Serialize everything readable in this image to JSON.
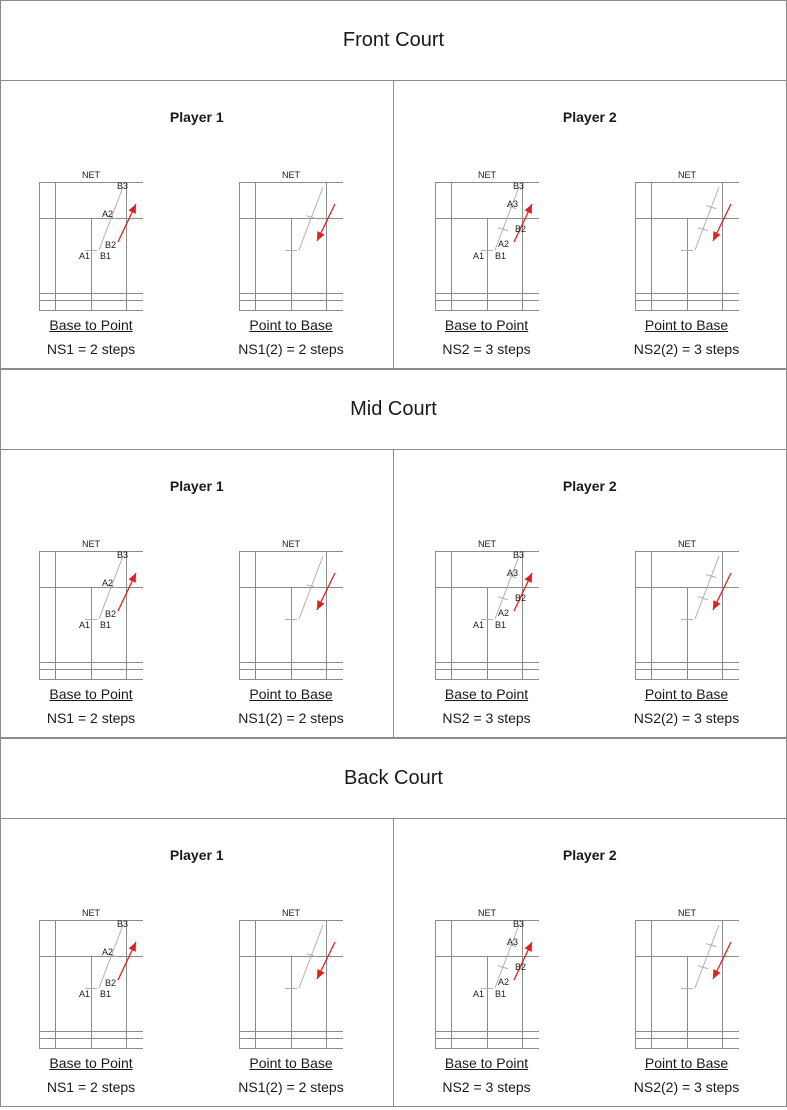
{
  "sections": [
    {
      "title": "Front Court",
      "players": [
        {
          "name": "Player 1",
          "steps_type": "ns1",
          "diagrams": [
            {
              "kind": "base",
              "net": "NET",
              "label": "Base to Point",
              "steps": "NS1 = 2 steps",
              "marks": [
                "B3",
                "A2",
                "B2",
                "A1",
                "B1"
              ]
            },
            {
              "kind": "point",
              "net": "NET",
              "label": "Point to Base",
              "steps": "NS1(2) = 2 steps",
              "marks": []
            }
          ]
        },
        {
          "name": "Player 2",
          "steps_type": "ns2",
          "diagrams": [
            {
              "kind": "base",
              "net": "NET",
              "label": "Base to Point",
              "steps": "NS2 = 3 steps",
              "marks": [
                "B3",
                "A3",
                "B2",
                "A2",
                "A1",
                "B1"
              ]
            },
            {
              "kind": "point",
              "net": "NET",
              "label": "Point to Base",
              "steps": "NS2(2) = 3 steps",
              "marks": []
            }
          ]
        }
      ]
    },
    {
      "title": "Mid Court",
      "players": [
        {
          "name": "Player 1",
          "steps_type": "ns1",
          "diagrams": [
            {
              "kind": "base",
              "net": "NET",
              "label": "Base to Point",
              "steps": "NS1 = 2 steps",
              "marks": [
                "B3",
                "A2",
                "B2",
                "A1",
                "B1"
              ]
            },
            {
              "kind": "point",
              "net": "NET",
              "label": "Point to Base",
              "steps": "NS1(2) = 2 steps",
              "marks": []
            }
          ]
        },
        {
          "name": "Player 2",
          "steps_type": "ns2",
          "diagrams": [
            {
              "kind": "base",
              "net": "NET",
              "label": "Base to Point",
              "steps": "NS2 = 3 steps",
              "marks": [
                "B3",
                "A3",
                "B2",
                "A2",
                "A1",
                "B1"
              ]
            },
            {
              "kind": "point",
              "net": "NET",
              "label": "Point to Base",
              "steps": "NS2(2) = 3 steps",
              "marks": []
            }
          ]
        }
      ]
    },
    {
      "title": "Back Court",
      "players": [
        {
          "name": "Player 1",
          "steps_type": "ns1",
          "diagrams": [
            {
              "kind": "base",
              "net": "NET",
              "label": "Base to Point",
              "steps": "NS1 = 2 steps",
              "marks": [
                "B3",
                "A2",
                "B2",
                "A1",
                "B1"
              ]
            },
            {
              "kind": "point",
              "net": "NET",
              "label": "Point to Base",
              "steps": "NS1(2) = 2 steps",
              "marks": []
            }
          ]
        },
        {
          "name": "Player 2",
          "steps_type": "ns2",
          "diagrams": [
            {
              "kind": "base",
              "net": "NET",
              "label": "Base to Point",
              "steps": "NS2 = 3 steps",
              "marks": [
                "B3",
                "A3",
                "B2",
                "A2",
                "A1",
                "B1"
              ]
            },
            {
              "kind": "point",
              "net": "NET",
              "label": "Point to Base",
              "steps": "NS2(2) = 3 steps",
              "marks": []
            }
          ]
        }
      ]
    }
  ],
  "colors": {
    "court_line": "#8c8c8c",
    "path_line": "#b0b0b0",
    "arrow": "#e02020",
    "border": "#8c8c8c"
  }
}
